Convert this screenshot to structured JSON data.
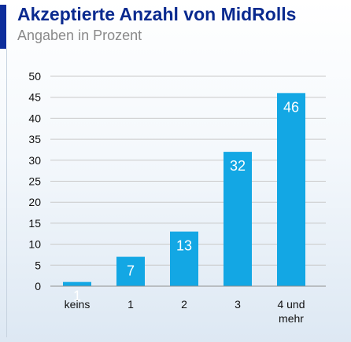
{
  "header": {
    "title": "Akzeptierte Anzahl von MidRolls",
    "subtitle": "Angaben in Prozent"
  },
  "colors": {
    "accent": "#0d2d9b",
    "title": "#0a2a8f",
    "bar": "#13a7e4"
  },
  "chart_data": {
    "type": "bar",
    "title": "Akzeptierte Anzahl von MidRolls",
    "subtitle": "Angaben in Prozent",
    "categories": [
      [
        "keins"
      ],
      [
        "1"
      ],
      [
        "2"
      ],
      [
        "3"
      ],
      [
        "4 und",
        "mehr"
      ]
    ],
    "values": [
      1,
      7,
      13,
      32,
      46
    ],
    "ylim": [
      0,
      50
    ],
    "yticks": [
      0,
      5,
      10,
      15,
      20,
      25,
      30,
      35,
      40,
      45,
      50
    ],
    "grid": true,
    "legend": "none"
  }
}
